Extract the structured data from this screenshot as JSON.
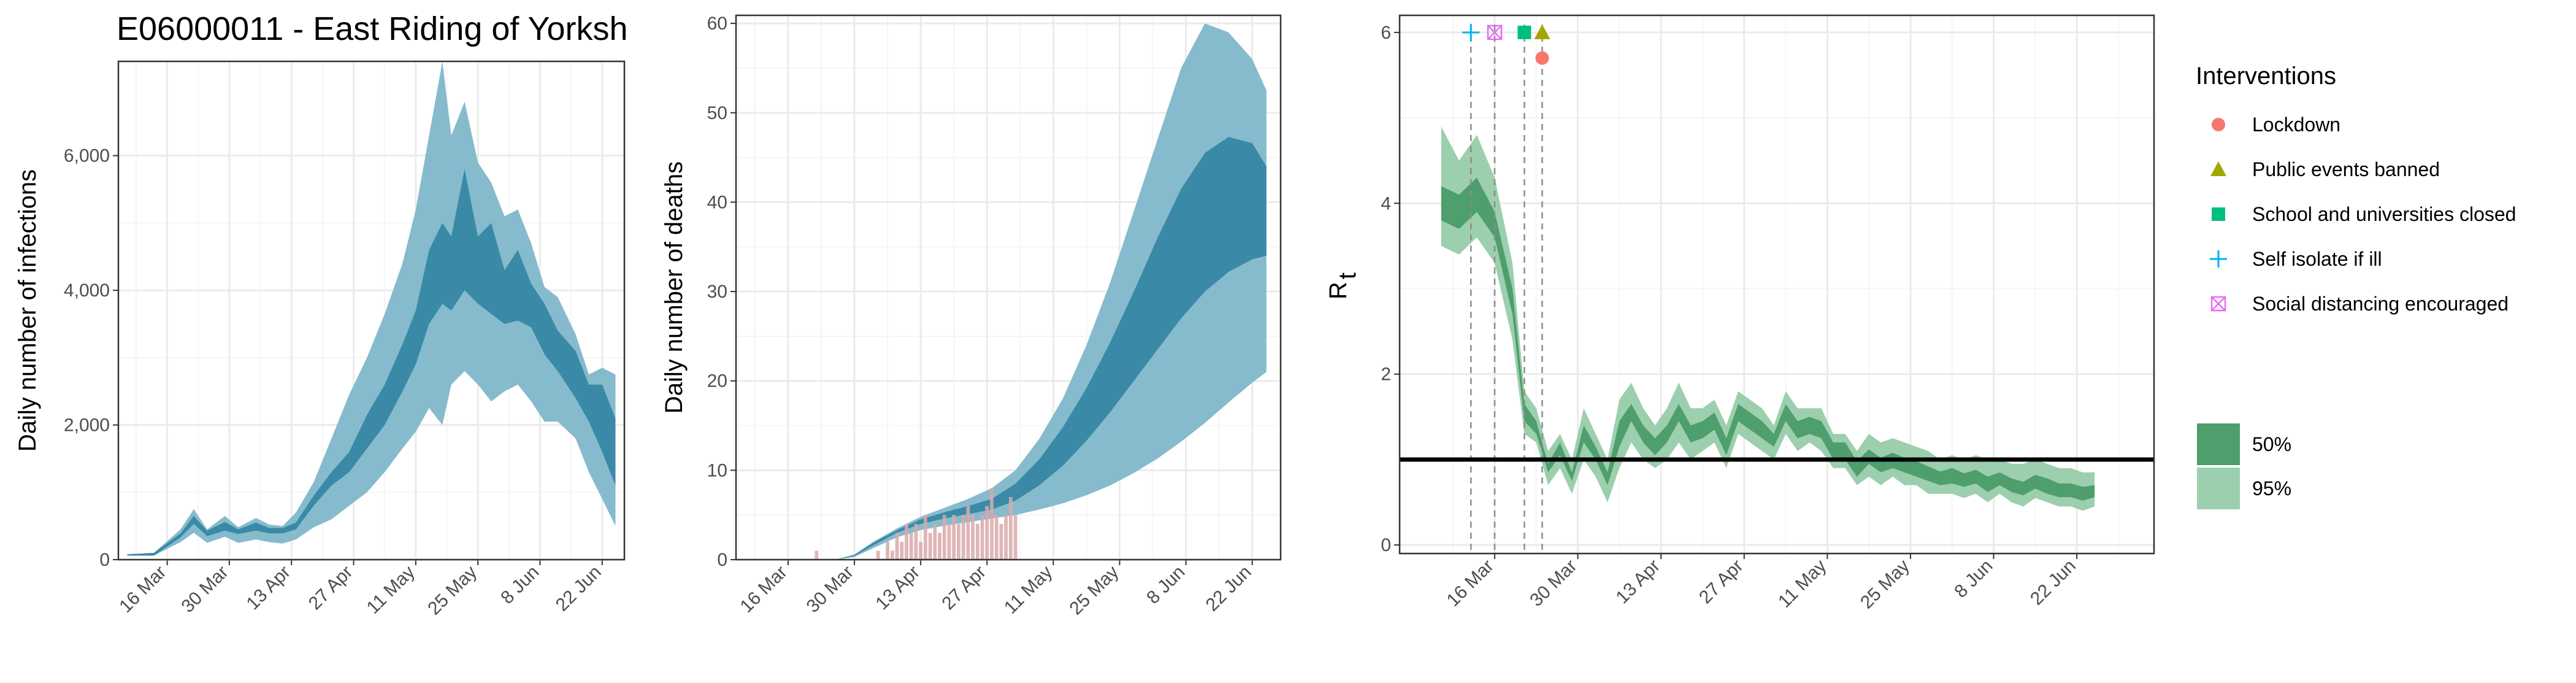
{
  "colors": {
    "infection_95": "#86bbcd",
    "infection_50": "#3a8aa7",
    "rt_95": "#9ccfad",
    "rt_50": "#4f9e6d",
    "observed_deaths": "#d9a9a9",
    "lockdown": "#f8766d",
    "public_events": "#a3a500",
    "school": "#00bf7d",
    "self_isolate": "#00b0f6",
    "social_distancing": "#e76bf3",
    "grid_major": "#ebebeb",
    "grid_minor": "#f5f5f5"
  },
  "chart_data": [
    {
      "type": "area",
      "title": "E06000011 - East Riding of Yorksh",
      "xlabel": "",
      "ylabel": "Daily number of infections",
      "x_tick_labels": [
        "16 Mar",
        "30 Mar",
        "13 Apr",
        "27 Apr",
        "11 May",
        "25 May",
        "8 Jun",
        "22 Jun"
      ],
      "y_tick_labels": [
        "0",
        "2,000",
        "4,000",
        "6,000"
      ],
      "ylim": [
        0,
        7400
      ],
      "grid": true,
      "x": [
        "7 Mar",
        "13 Mar",
        "19 Mar",
        "22 Mar",
        "25 Mar",
        "29 Mar",
        "1 Apr",
        "5 Apr",
        "8 Apr",
        "11 Apr",
        "14 Apr",
        "18 Apr",
        "22 Apr",
        "26 Apr",
        "30 Apr",
        "4 May",
        "8 May",
        "11 May",
        "14 May",
        "17 May",
        "19 May",
        "22 May",
        "25 May",
        "28 May",
        "31 May",
        "3 Jun",
        "6 Jun",
        "9 Jun",
        "12 Jun",
        "16 Jun",
        "19 Jun",
        "22 Jun",
        "25 Jun"
      ],
      "series": [
        {
          "values_lower": [
            60,
            60,
            260,
            400,
            250,
            340,
            250,
            300,
            260,
            240,
            300,
            480,
            600,
            800,
            1000,
            1300,
            1650,
            1900,
            2250,
            2000,
            2600,
            2800,
            2600,
            2350,
            2500,
            2600,
            2350,
            2050,
            2050,
            1800,
            1300,
            900,
            500
          ],
          "values_upper": [
            80,
            100,
            450,
            750,
            450,
            650,
            480,
            620,
            520,
            500,
            700,
            1150,
            1800,
            2450,
            3000,
            3650,
            4400,
            5200,
            6300,
            7400,
            6300,
            6800,
            5900,
            5600,
            5100,
            5200,
            4700,
            4050,
            3900,
            3350,
            2750,
            2850,
            2750
          ]
        },
        {
          "values_lower": [
            60,
            60,
            330,
            530,
            350,
            430,
            380,
            430,
            390,
            390,
            450,
            800,
            1100,
            1300,
            1650,
            2000,
            2500,
            2900,
            3500,
            3800,
            3700,
            4000,
            3800,
            3650,
            3500,
            3550,
            3450,
            3050,
            2800,
            2400,
            2050,
            1600,
            1100
          ],
          "values_upper": [
            80,
            100,
            390,
            650,
            430,
            560,
            450,
            550,
            470,
            470,
            550,
            950,
            1300,
            1600,
            2150,
            2600,
            3200,
            3700,
            4600,
            5000,
            4800,
            5800,
            4800,
            5000,
            4300,
            4600,
            4100,
            3800,
            3400,
            3100,
            2600,
            2600,
            2100
          ]
        }
      ]
    },
    {
      "type": "area",
      "xlabel": "",
      "ylabel": "Daily number of deaths",
      "x_tick_labels": [
        "16 Mar",
        "30 Mar",
        "13 Apr",
        "27 Apr",
        "11 May",
        "25 May",
        "8 Jun",
        "22 Jun"
      ],
      "y_tick_labels": [
        "0",
        "10",
        "20",
        "30",
        "40",
        "50",
        "60"
      ],
      "ylim": [
        0,
        60
      ],
      "grid": true,
      "x": [
        "26 Mar",
        "30 Mar",
        "3 Apr",
        "8 Apr",
        "13 Apr",
        "18 Apr",
        "23 Apr",
        "28 Apr",
        "3 May",
        "8 May",
        "13 May",
        "18 May",
        "23 May",
        "28 May",
        "2 Jun",
        "7 Jun",
        "12 Jun",
        "17 Jun",
        "22 Jun",
        "25 Jun"
      ],
      "series": [
        {
          "values_lower": [
            0,
            0.3,
            1.3,
            2.5,
            3.3,
            3.8,
            4.2,
            4.6,
            5.0,
            5.6,
            6.3,
            7.2,
            8.3,
            9.7,
            11.3,
            13.2,
            15.3,
            17.6,
            19.8,
            21
          ],
          "values_upper": [
            0,
            0.6,
            2.0,
            3.5,
            4.8,
            5.8,
            6.8,
            8.0,
            10.0,
            13.5,
            18,
            24,
            31,
            39,
            47,
            55,
            60,
            59,
            56,
            52.5
          ]
        },
        {
          "values_lower": [
            0,
            0.4,
            1.6,
            3.0,
            4.0,
            4.6,
            5.1,
            5.6,
            6.6,
            8.3,
            10.5,
            13.3,
            16.5,
            20,
            23.5,
            27,
            30,
            32.2,
            33.6,
            34
          ]
        },
        {
          "values_upper": [
            0,
            0.5,
            1.9,
            3.3,
            4.5,
            5.3,
            6.0,
            6.8,
            8.5,
            11.2,
            14.8,
            19.2,
            24.3,
            30,
            36,
            41.5,
            45.5,
            47.3,
            46.6,
            44
          ]
        }
      ],
      "observed_deaths": {
        "x": [
          "22 Mar",
          "4 Apr",
          "6 Apr",
          "7 Apr",
          "8 Apr",
          "9 Apr",
          "10 Apr",
          "11 Apr",
          "12 Apr",
          "13 Apr",
          "14 Apr",
          "15 Apr",
          "16 Apr",
          "17 Apr",
          "18 Apr",
          "19 Apr",
          "20 Apr",
          "21 Apr",
          "22 Apr",
          "23 Apr",
          "24 Apr",
          "25 Apr",
          "26 Apr",
          "27 Apr",
          "28 Apr",
          "29 Apr",
          "30 Apr",
          "1 May",
          "2 May",
          "3 May"
        ],
        "values": [
          1,
          1,
          2,
          1,
          3,
          2,
          4,
          3,
          4,
          2,
          5,
          3,
          4,
          3,
          5,
          4,
          5,
          4,
          5,
          6,
          5,
          4,
          5,
          6,
          8,
          5,
          4,
          5,
          7,
          5
        ]
      }
    },
    {
      "type": "area",
      "xlabel": "",
      "ylabel": "R",
      "ylabel_subscript": "t",
      "x_tick_labels": [
        "16 Mar",
        "30 Mar",
        "13 Apr",
        "27 Apr",
        "11 May",
        "25 May",
        "8 Jun",
        "22 Jun"
      ],
      "y_tick_labels": [
        "0",
        "2",
        "4",
        "6"
      ],
      "ylim": [
        0,
        6
      ],
      "grid": true,
      "reference_line": 1,
      "x": [
        "7 Mar",
        "10 Mar",
        "13 Mar",
        "16 Mar",
        "19 Mar",
        "21 Mar",
        "23 Mar",
        "25 Mar",
        "27 Mar",
        "29 Mar",
        "31 Mar",
        "2 Apr",
        "4 Apr",
        "6 Apr",
        "8 Apr",
        "10 Apr",
        "12 Apr",
        "14 Apr",
        "16 Apr",
        "18 Apr",
        "20 Apr",
        "22 Apr",
        "24 Apr",
        "26 Apr",
        "28 Apr",
        "30 Apr",
        "2 May",
        "4 May",
        "6 May",
        "8 May",
        "10 May",
        "12 May",
        "14 May",
        "16 May",
        "18 May",
        "20 May",
        "22 May",
        "24 May",
        "26 May",
        "28 May",
        "30 May",
        "1 Jun",
        "3 Jun",
        "5 Jun",
        "7 Jun",
        "9 Jun",
        "11 Jun",
        "13 Jun",
        "15 Jun",
        "17 Jun",
        "19 Jun",
        "21 Jun",
        "23 Jun",
        "25 Jun"
      ],
      "rt_lower_95": [
        3.5,
        3.4,
        3.6,
        3.3,
        2.4,
        1.3,
        1.2,
        0.7,
        0.9,
        0.6,
        1.0,
        0.8,
        0.5,
        0.9,
        1.2,
        1.0,
        0.9,
        1.0,
        1.2,
        1.0,
        1.1,
        1.2,
        0.9,
        1.3,
        1.2,
        1.1,
        1.0,
        1.3,
        1.1,
        1.2,
        1.1,
        0.9,
        0.9,
        0.7,
        0.8,
        0.7,
        0.8,
        0.7,
        0.7,
        0.6,
        0.6,
        0.6,
        0.55,
        0.6,
        0.5,
        0.6,
        0.5,
        0.45,
        0.55,
        0.5,
        0.45,
        0.45,
        0.4,
        0.45
      ],
      "rt_upper_95": [
        4.9,
        4.5,
        4.8,
        4.3,
        3.3,
        1.8,
        1.6,
        1.1,
        1.3,
        1.0,
        1.6,
        1.3,
        1.0,
        1.7,
        1.9,
        1.6,
        1.4,
        1.6,
        1.9,
        1.6,
        1.6,
        1.7,
        1.4,
        1.8,
        1.7,
        1.6,
        1.4,
        1.8,
        1.6,
        1.6,
        1.6,
        1.3,
        1.3,
        1.1,
        1.3,
        1.2,
        1.25,
        1.2,
        1.15,
        1.1,
        1.0,
        1.05,
        1.0,
        1.05,
        1.0,
        1.0,
        0.95,
        0.95,
        1.0,
        0.95,
        0.9,
        0.9,
        0.85,
        0.85
      ],
      "rt_lower_50": [
        3.8,
        3.7,
        3.9,
        3.6,
        2.7,
        1.45,
        1.3,
        0.85,
        1.05,
        0.75,
        1.2,
        1.0,
        0.7,
        1.15,
        1.45,
        1.2,
        1.05,
        1.2,
        1.45,
        1.2,
        1.25,
        1.35,
        1.05,
        1.45,
        1.35,
        1.25,
        1.15,
        1.45,
        1.25,
        1.3,
        1.25,
        1.0,
        1.0,
        0.8,
        0.95,
        0.85,
        0.9,
        0.85,
        0.8,
        0.75,
        0.7,
        0.72,
        0.68,
        0.72,
        0.62,
        0.7,
        0.62,
        0.58,
        0.66,
        0.6,
        0.56,
        0.56,
        0.52,
        0.56
      ],
      "rt_upper_50": [
        4.2,
        4.1,
        4.3,
        3.9,
        3.0,
        1.65,
        1.45,
        0.95,
        1.2,
        0.85,
        1.4,
        1.15,
        0.85,
        1.45,
        1.65,
        1.4,
        1.25,
        1.4,
        1.65,
        1.4,
        1.45,
        1.55,
        1.25,
        1.65,
        1.55,
        1.45,
        1.3,
        1.65,
        1.45,
        1.5,
        1.45,
        1.2,
        1.2,
        0.98,
        1.12,
        1.02,
        1.08,
        1.02,
        0.98,
        0.92,
        0.86,
        0.9,
        0.84,
        0.88,
        0.8,
        0.85,
        0.78,
        0.74,
        0.82,
        0.78,
        0.72,
        0.72,
        0.68,
        0.7
      ],
      "interventions": [
        {
          "name": "Self isolate if ill",
          "date": "12 Mar",
          "marker": "plus",
          "value": 6.0
        },
        {
          "name": "Social distancing encouraged",
          "date": "16 Mar",
          "marker": "square-cross",
          "value": 6.0
        },
        {
          "name": "School and universities closed",
          "date": "21 Mar",
          "marker": "square",
          "value": 6.0
        },
        {
          "name": "Public events banned",
          "date": "24 Mar",
          "marker": "triangle",
          "value": 6.0
        },
        {
          "name": "Lockdown",
          "date": "24 Mar",
          "marker": "circle",
          "value": 5.7
        }
      ],
      "legend_placement": "right"
    }
  ],
  "legend": {
    "title": "Interventions",
    "items": [
      {
        "label": "Lockdown",
        "marker": "circle"
      },
      {
        "label": "Public events banned",
        "marker": "triangle"
      },
      {
        "label": "School and universities closed",
        "marker": "square"
      },
      {
        "label": "Self isolate if ill",
        "marker": "plus"
      },
      {
        "label": "Social distancing encouraged",
        "marker": "square-cross"
      }
    ],
    "band_items": [
      {
        "label": "50%"
      },
      {
        "label": "95%"
      }
    ]
  }
}
